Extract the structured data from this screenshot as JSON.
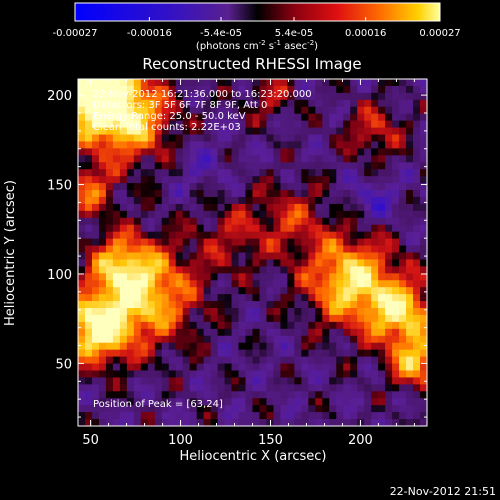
{
  "chart_data": {
    "type": "heatmap",
    "title": "Reconstructed RHESSI Image",
    "xlabel": "Heliocentric X (arcsec)",
    "ylabel": "Heliocentric Y (arcsec)",
    "xlim": [
      43,
      237
    ],
    "ylim": [
      15,
      209
    ],
    "xticks": [
      50,
      100,
      150,
      200
    ],
    "yticks": [
      50,
      100,
      150,
      200
    ],
    "colorbar": {
      "ticks": [
        "-0.00027",
        "-0.00016",
        "-5.4e-05",
        "5.4e-05",
        "0.00016",
        "0.00027"
      ],
      "range": [
        -0.00027,
        0.00027
      ],
      "unit_base": "(photons cm",
      "unit_exp1": "-2",
      "unit_mid": " s",
      "unit_exp2": "-1",
      "unit_mid2": " asec",
      "unit_exp3": "-2",
      "unit_end": ")"
    },
    "annotations": [
      "22-Nov-2012 16:21:36.000 to 16:23:20.000",
      "Detectors: 3F 5F 6F 7F 8F 9F, Att 0",
      "Energy Range: 25.0 - 50.0 keV",
      "Clean     Total counts: 2.22E+03"
    ],
    "peak_label": "Position of Peak = [63,24]",
    "timestamp": "22-Nov-2012 21:51"
  }
}
